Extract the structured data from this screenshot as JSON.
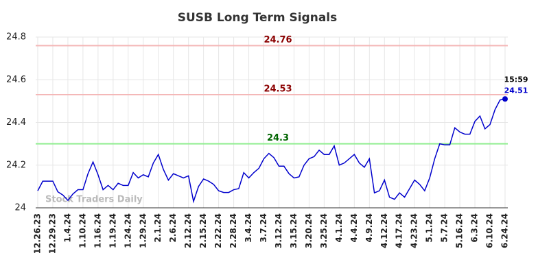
{
  "chart_data": {
    "type": "line",
    "title": "SUSB Long Term Signals",
    "categories": [
      "12.26.23",
      null,
      null,
      "12.29.23",
      null,
      null,
      "1.4.24",
      null,
      null,
      "1.10.24",
      null,
      null,
      "1.16.24",
      null,
      null,
      "1.19.24",
      null,
      null,
      "1.24.24",
      null,
      null,
      "1.29.24",
      null,
      null,
      "2.1.24",
      null,
      null,
      "2.6.24",
      null,
      null,
      "2.12.24",
      null,
      null,
      "2.15.24",
      null,
      null,
      "2.22.24",
      null,
      null,
      "2.28.24",
      null,
      null,
      "3.4.24",
      null,
      null,
      "3.7.24",
      null,
      null,
      "3.12.24",
      null,
      null,
      "3.15.24",
      null,
      null,
      "3.20.24",
      null,
      null,
      "3.25.24",
      null,
      null,
      "4.1.24",
      null,
      null,
      "4.4.24",
      null,
      null,
      "4.9.24",
      null,
      null,
      "4.12.24",
      null,
      null,
      "4.17.24",
      null,
      null,
      "4.23.24",
      null,
      null,
      "5.1.24",
      null,
      null,
      "5.7.24",
      null,
      null,
      "5.16.24",
      null,
      null,
      "6.3.24",
      null,
      null,
      "6.10.24",
      null,
      null,
      "6.24.24"
    ],
    "series": [
      {
        "name": "SUSB",
        "color": "#0000cc",
        "values": [
          24.08,
          24.125,
          24.125,
          24.125,
          24.075,
          24.06,
          24.035,
          24.065,
          24.085,
          24.085,
          24.16,
          24.215,
          24.155,
          24.085,
          24.105,
          24.085,
          24.115,
          24.105,
          24.105,
          24.165,
          24.14,
          24.155,
          24.145,
          24.21,
          24.25,
          24.18,
          24.13,
          24.16,
          24.15,
          24.14,
          24.15,
          24.03,
          24.1,
          24.135,
          24.125,
          24.11,
          24.08,
          24.072,
          24.072,
          24.085,
          24.09,
          24.165,
          24.14,
          24.165,
          24.185,
          24.23,
          24.255,
          24.235,
          24.195,
          24.195,
          24.16,
          24.14,
          24.145,
          24.2,
          24.23,
          24.24,
          24.27,
          24.25,
          24.25,
          24.29,
          24.2,
          24.21,
          24.23,
          24.25,
          24.21,
          24.19,
          24.23,
          24.07,
          24.08,
          24.13,
          24.05,
          24.04,
          24.07,
          24.05,
          24.09,
          24.13,
          24.11,
          24.08,
          24.14,
          24.23,
          24.3,
          24.295,
          24.295,
          24.375,
          24.355,
          24.345,
          24.345,
          24.405,
          24.43,
          24.37,
          24.39,
          24.46,
          24.505,
          24.51
        ]
      }
    ],
    "reference_lines": [
      {
        "value": 24.76,
        "color": "#f4b8b8",
        "label_color": "#8b0000"
      },
      {
        "value": 24.53,
        "color": "#f4b8b8",
        "label_color": "#8b0000"
      },
      {
        "value": 24.3,
        "color": "#90ee90",
        "label_color": "#006400"
      }
    ],
    "last_time": "15:59",
    "watermark": "Stock Traders Daily",
    "ylim": [
      24,
      24.8
    ],
    "yticks": [
      24,
      24.2,
      24.4,
      24.6,
      24.8
    ],
    "grid": true
  }
}
